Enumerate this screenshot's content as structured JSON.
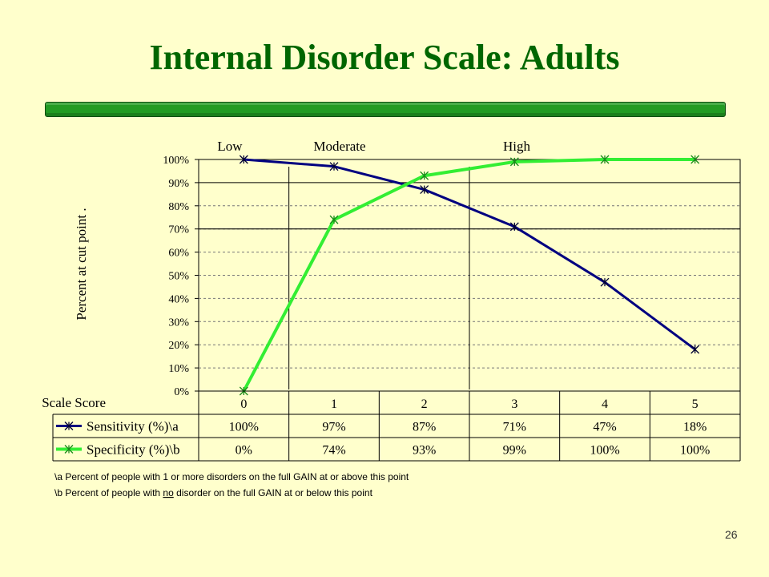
{
  "slide": {
    "title": "Internal Disorder Scale: Adults",
    "page_number": "26"
  },
  "colors": {
    "title": "#006600",
    "bar": "#239b23",
    "sensitivity": "#000080",
    "specificity": "#33ee33",
    "background": "#ffffcc"
  },
  "chart_data": {
    "type": "line",
    "ylabel": "Percent at cut point .",
    "xlabel": "Scale Score",
    "ylim": [
      0,
      100
    ],
    "y_ticks": [
      "0%",
      "10%",
      "20%",
      "30%",
      "40%",
      "50%",
      "60%",
      "70%",
      "80%",
      "90%",
      "100%"
    ],
    "categories": [
      "0",
      "1",
      "2",
      "3",
      "4",
      "5"
    ],
    "series": [
      {
        "name": "Sensitivity (%)\\a",
        "values": [
          100,
          97,
          87,
          71,
          47,
          18
        ],
        "labels": [
          "100%",
          "97%",
          "87%",
          "71%",
          "47%",
          "18%"
        ]
      },
      {
        "name": "Specificity (%)\\b",
        "values": [
          0,
          74,
          93,
          99,
          100,
          100
        ],
        "labels": [
          "0%",
          "74%",
          "93%",
          "99%",
          "100%",
          "100%"
        ]
      }
    ],
    "regions": [
      "Low",
      "Moderate",
      "High"
    ],
    "region_boundaries": [
      0.5,
      2.5
    ],
    "reference_line": 70,
    "grid": true,
    "notes": [
      {
        "parts": [
          {
            "text": "\\a Percent of people with 1 or more disorders on the full GAIN at or above this point"
          }
        ]
      },
      {
        "parts": [
          {
            "text": "\\b Percent of people with "
          },
          {
            "text": "no",
            "underline": true
          },
          {
            "text": " disorder on the full GAIN at or below this point"
          }
        ]
      }
    ]
  }
}
